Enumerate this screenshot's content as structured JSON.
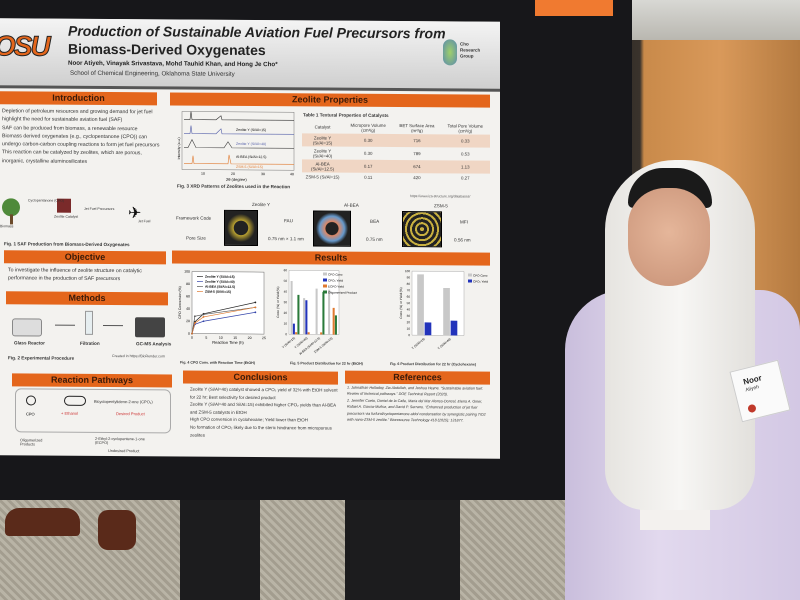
{
  "poster": {
    "logo_text": "OSU",
    "title_line1": "Production of Sustainable Aviation Fuel Precursors from",
    "title_line2": "Biomass-Derived Oxygenates",
    "authors": "Noor Atiyeh, Vinayak Srivastava, Mohd Tauhid Khan, and Hong Je Cho*",
    "affiliation": "School of Chemical Engineering, Oklahoma State University",
    "group_logo": "Cho Research Group",
    "introduction": {
      "heading": "Introduction",
      "bullets": [
        "Depletion of petroleum resources and growing demand for jet fuel highlight the need for sustainable aviation fuel (SAF)",
        "SAF can be produced from biomass, a renewable resource",
        "Biomass derived oxygenates (e.g., cyclopentanone (CPO)) can undergo carbon-carbon coupling reactions to form jet fuel precursors",
        "This reaction can be catalyzed by zeolites, which are porous, inorganic, crystalline aluminosilicates"
      ],
      "fig_labels": [
        "Biomass",
        "Cyclopentanone (CPO)",
        "Zeolite Catalyst",
        "Jet Fuel Precursors",
        "Jet Fuel"
      ],
      "caption": "Fig. 1 SAF Production from Biomass-Derived Oxygenates"
    },
    "objective": {
      "heading": "Objective",
      "text": "To investigate the influence of zeolite structure on catalytic performance in the production of SAF precursors"
    },
    "methods": {
      "heading": "Methods",
      "steps": [
        "Glass Reactor",
        "Filtration",
        "GC-MS Analysis"
      ],
      "credit": "Created in https://BioRender.com",
      "caption": "Fig. 2 Experimental Procedure"
    },
    "pathways": {
      "heading": "Reaction Pathways",
      "cpo": "CPO",
      "product": "Bicyclopentylidene-2-one (CPO₂)",
      "desired": "Desired Product",
      "ethanol": "+ Ethanol",
      "oligo": "Oligomerized Products",
      "side": "2-Ethyl-2-cyclopentene-1-one (ECPO)",
      "undesired": "Undesired Product"
    },
    "zeolite": {
      "heading": "Zeolite Properties",
      "xrd": {
        "ylabel": "Intensity (a.u.)",
        "xlabel": "2θ (degree)",
        "ticks": [
          "10",
          "20",
          "30",
          "40"
        ],
        "series": [
          "Zeolite Y (Si/Al=15)",
          "Zeolite Y (Si/Al=40)",
          "Al-BEA (Si/Al=12.5)",
          "ZSM-5 (Si/Al=15)"
        ],
        "caption": "Fig. 3 XRD Patterns of Zeolites used in the Reaction"
      },
      "table": {
        "title": "Table 1 Textural Properties of Catalysts",
        "headers": [
          "Catalyst",
          "Micropore Volume (cm³/g)",
          "BET Surface Area (m²/g)",
          "Total Pore Volume (cm³/g)"
        ],
        "rows": [
          [
            "Zeolite Y (Si/Al=15)",
            "0.30",
            "716",
            "0.33"
          ],
          [
            "Zeolite Y (Si/Al=40)",
            "0.30",
            "789",
            "0.53"
          ],
          [
            "Al-BEA (Si/Al=12.5)",
            "0.17",
            "674",
            "1.13"
          ],
          [
            "ZSM-5 (Si/Al=15)",
            "0.11",
            "420",
            "0.27"
          ]
        ]
      },
      "source": "https://www.iza-structure.org/databases/",
      "frameworks": {
        "row_labels": [
          "Framework Code",
          "Pore Size"
        ],
        "cols": [
          {
            "name": "Zeolite Y",
            "code": "FAU",
            "pore": "0.75 nm × 1.1 nm"
          },
          {
            "name": "Al-BEA",
            "code": "BEA",
            "pore": "0.75 nm"
          },
          {
            "name": "ZSM-5",
            "code": "MFI",
            "pore": "0.56 nm"
          }
        ]
      }
    },
    "results": {
      "heading": "Results",
      "fig4": {
        "ylabel": "CPO Conversion (%)",
        "xlabel": "Reaction Time (h)",
        "yticks": [
          "0",
          "20",
          "40",
          "60",
          "80",
          "100"
        ],
        "xticks": [
          "0",
          "5",
          "10",
          "15",
          "20",
          "25"
        ],
        "series": [
          {
            "name": "Zeolite Y (Si/Al=15)",
            "color": "#222222",
            "x": [
              0,
              1,
              4,
              22
            ],
            "y": [
              0,
              19,
              32,
              51
            ]
          },
          {
            "name": "Zeolite Y (Si/Al=40)",
            "color": "#3344aa",
            "x": [
              0,
              1,
              4,
              22
            ],
            "y": [
              0,
              15,
              20,
              35
            ]
          },
          {
            "name": "Al-BEA (Si/Al=12.5)",
            "color": "#555555",
            "x": [
              0,
              1,
              4,
              22
            ],
            "y": [
              0,
              28,
              31,
              43
            ]
          },
          {
            "name": "ZSM-5 (Si/Al=15)",
            "color": "#e07a30",
            "x": [
              0,
              1,
              4,
              22
            ],
            "y": [
              0,
              17,
              27,
              43
            ]
          }
        ],
        "caption": "Fig. 4 CPO Conv. with Reaction Time (EtOH)"
      },
      "fig5": {
        "ylabel": "Conv. (%) or Yield (%)",
        "categories": [
          "Y (Si/Al=15)",
          "Y (Si/Al=40)",
          "Al-BEA (Si/Al=12.5)",
          "ZSM-5 (Si/Al=15)"
        ],
        "ymax": 60,
        "yticks": [
          "0",
          "10",
          "20",
          "30",
          "40",
          "50",
          "60"
        ],
        "series": [
          {
            "name": "CPO Conv.",
            "color": "#c8c8c8",
            "values": [
              50,
              34,
              43,
              42
            ]
          },
          {
            "name": "CPO₂ Yield",
            "color": "#2233bb",
            "values": [
              10,
              32,
              0,
              0
            ]
          },
          {
            "name": "ECPO Yield",
            "color": "#e07a30",
            "values": [
              2,
              2,
              2,
              25
            ]
          },
          {
            "name": "Oligomerized Product Yield",
            "color": "#2a7a3a",
            "values": [
              37,
              0,
              40,
              18
            ]
          }
        ],
        "caption": "Fig. 5 Product Distribution for 22 hr (EtOH)"
      },
      "fig6": {
        "ylabel": "Conv. (%) or Yield (%)",
        "categories": [
          "Y (Si/Al=15)",
          "Y (Si/Al=40)"
        ],
        "ymax": 100,
        "yticks": [
          "0",
          "10",
          "20",
          "30",
          "40",
          "50",
          "60",
          "70",
          "80",
          "90",
          "100"
        ],
        "series": [
          {
            "name": "CPO Conv.",
            "color": "#c8c8c8",
            "values": [
              95,
              74
            ]
          },
          {
            "name": "CPO₂ Yield",
            "color": "#2233bb",
            "values": [
              20,
              23
            ]
          }
        ],
        "caption": "Fig. 6 Product Distribution for 22 hr (Cyclohexane)"
      }
    },
    "conclusions": {
      "heading": "Conclusions",
      "bullets": [
        "Zeolite Y (Si/Al=40) catalyst showed a CPO₂ yield of 32% with EtOH solvent for 22 hr; Best selectivity for desired product",
        "Zeolite Y (Si/Al=40 and Si/Al=15) exhibited higher CPO₂ yields than Al-BEA and ZSM-5 catalysts in EtOH",
        "High CPO conversion in cyclohexane; Yield lower than EtOH",
        "No formation of CPO₂ likely due to the steric hindrance from microporous zeolites"
      ]
    },
    "references": {
      "heading": "References",
      "items": [
        "1. Johnathan Holladay, Zia Abdullah, and Joshua Heyne. “Sustainable aviation fuel: Review of technical pathways.” DOE Technical Report (2020).",
        "2. Jennifer Cueto, Daniel de la Calle, Maria del Mar Alonso-Doncel, Elena A. Giner, Rafael A. Garcia-Muñoz, and David P. Serrano. “Enhanced production of jet fuel precursors via furfural/cyclopentanone aldol condensation by synergistic pairing TiO2 with nano-ZSM-5 zeolite.” Bioresource Technology 418 (2025): 131877."
      ]
    }
  },
  "name_badge": {
    "first": "Noor",
    "last": "Atiyeh"
  },
  "colors": {
    "poster_accent": "#e4661c",
    "board": "#17171a",
    "blazer": "#d9cfe8",
    "hijab": "#f4f3f1"
  }
}
